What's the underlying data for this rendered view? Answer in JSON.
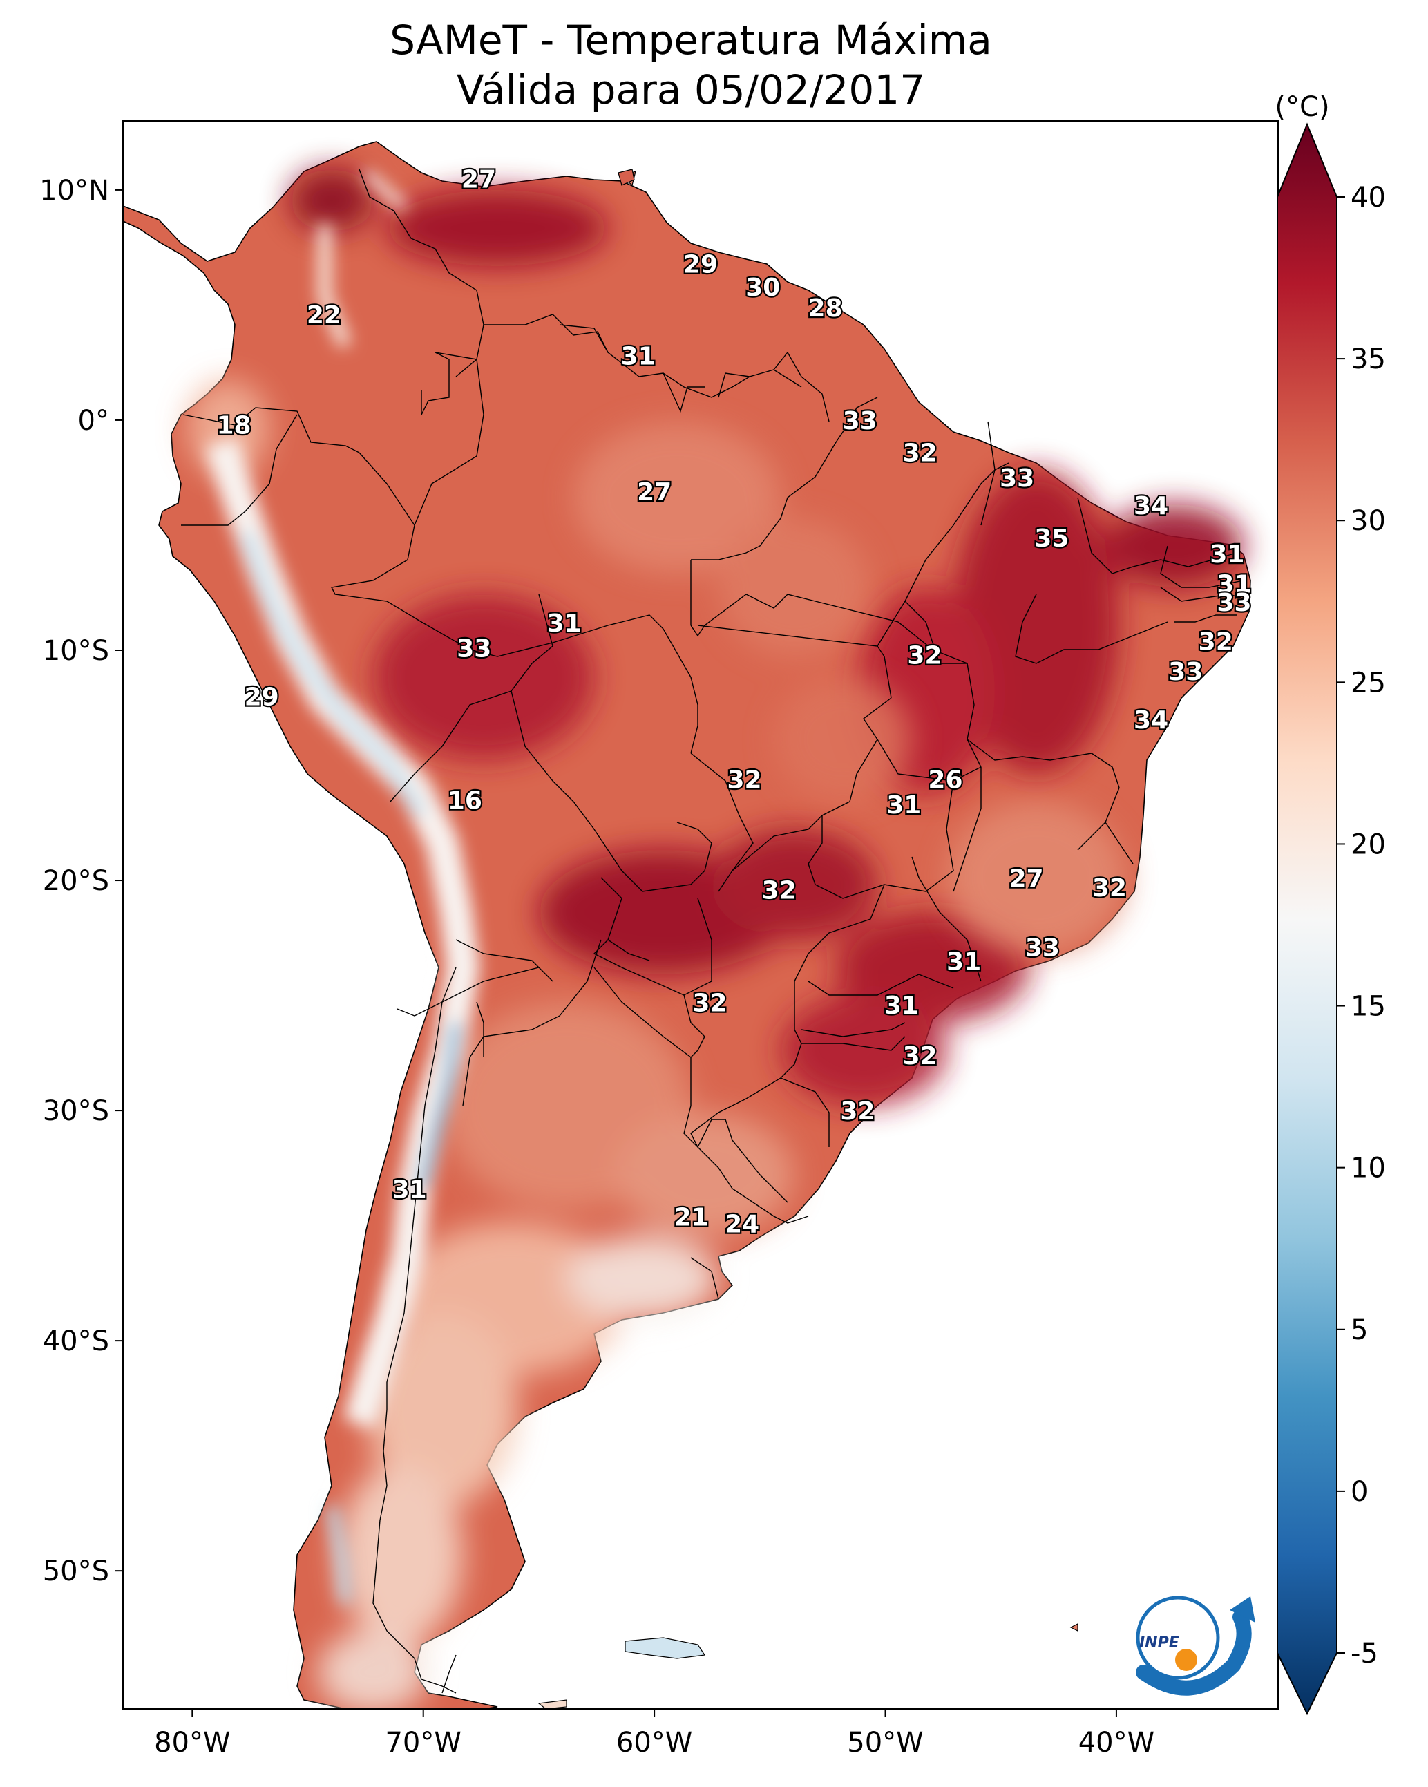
{
  "title_line1": "SAMeT - Temperatura Máxima",
  "title_line2": "Válida para 05/02/2017",
  "unit": "(°C)",
  "map": {
    "lon_range": [
      -83,
      -33
    ],
    "lat_range": [
      -56,
      13
    ],
    "x_ticks": [
      {
        "value": -80,
        "label": "80°W"
      },
      {
        "value": -70,
        "label": "70°W"
      },
      {
        "value": -60,
        "label": "60°W"
      },
      {
        "value": -50,
        "label": "50°W"
      },
      {
        "value": -40,
        "label": "40°W"
      }
    ],
    "y_ticks": [
      {
        "value": 10,
        "label": "10°N"
      },
      {
        "value": 0,
        "label": "0°"
      },
      {
        "value": -10,
        "label": "10°S"
      },
      {
        "value": -20,
        "label": "20°S"
      },
      {
        "value": -30,
        "label": "30°S"
      },
      {
        "value": -40,
        "label": "40°S"
      },
      {
        "value": -50,
        "label": "50°S"
      }
    ]
  },
  "colorbar": {
    "min": -5,
    "max": 40,
    "ticks": [
      "-5",
      "0",
      "5",
      "10",
      "15",
      "20",
      "25",
      "30",
      "35",
      "40"
    ],
    "colors": [
      "#053061",
      "#2166ac",
      "#4393c3",
      "#92c5de",
      "#d1e5f0",
      "#f7f7f7",
      "#fddbc7",
      "#f4a582",
      "#d6604d",
      "#b2182b",
      "#67001f"
    ]
  },
  "cities": [
    {
      "lon": -67.6,
      "lat": 10.5,
      "temp": "27"
    },
    {
      "lon": -74.3,
      "lat": 4.6,
      "temp": "22"
    },
    {
      "lon": -58.0,
      "lat": 6.8,
      "temp": "29"
    },
    {
      "lon": -55.3,
      "lat": 5.8,
      "temp": "30"
    },
    {
      "lon": -52.6,
      "lat": 4.9,
      "temp": "28"
    },
    {
      "lon": -60.7,
      "lat": 2.8,
      "temp": "31"
    },
    {
      "lon": -78.2,
      "lat": -0.2,
      "temp": "18"
    },
    {
      "lon": -51.1,
      "lat": 0.0,
      "temp": "33"
    },
    {
      "lon": -48.5,
      "lat": -1.4,
      "temp": "32"
    },
    {
      "lon": -60.0,
      "lat": -3.1,
      "temp": "27"
    },
    {
      "lon": -44.3,
      "lat": -2.5,
      "temp": "33"
    },
    {
      "lon": -38.5,
      "lat": -3.7,
      "temp": "34"
    },
    {
      "lon": -42.8,
      "lat": -5.1,
      "temp": "35"
    },
    {
      "lon": -35.2,
      "lat": -5.8,
      "temp": "31"
    },
    {
      "lon": -34.9,
      "lat": -7.1,
      "temp": "31"
    },
    {
      "lon": -34.9,
      "lat": -7.9,
      "temp": "33"
    },
    {
      "lon": -63.9,
      "lat": -8.8,
      "temp": "31"
    },
    {
      "lon": -67.8,
      "lat": -9.9,
      "temp": "33"
    },
    {
      "lon": -48.3,
      "lat": -10.2,
      "temp": "32"
    },
    {
      "lon": -35.7,
      "lat": -9.6,
      "temp": "32"
    },
    {
      "lon": -37.0,
      "lat": -10.9,
      "temp": "33"
    },
    {
      "lon": -77.0,
      "lat": -12.0,
      "temp": "29"
    },
    {
      "lon": -38.5,
      "lat": -13.0,
      "temp": "34"
    },
    {
      "lon": -56.1,
      "lat": -15.6,
      "temp": "32"
    },
    {
      "lon": -47.4,
      "lat": -15.6,
      "temp": "26"
    },
    {
      "lon": -49.2,
      "lat": -16.7,
      "temp": "31"
    },
    {
      "lon": -68.2,
      "lat": -16.5,
      "temp": "16"
    },
    {
      "lon": -43.9,
      "lat": -19.9,
      "temp": "27"
    },
    {
      "lon": -40.3,
      "lat": -20.3,
      "temp": "32"
    },
    {
      "lon": -54.6,
      "lat": -20.4,
      "temp": "32"
    },
    {
      "lon": -43.2,
      "lat": -22.9,
      "temp": "33"
    },
    {
      "lon": -46.6,
      "lat": -23.5,
      "temp": "31"
    },
    {
      "lon": -57.6,
      "lat": -25.3,
      "temp": "32"
    },
    {
      "lon": -49.3,
      "lat": -25.4,
      "temp": "31"
    },
    {
      "lon": -48.5,
      "lat": -27.6,
      "temp": "32"
    },
    {
      "lon": -51.2,
      "lat": -30.0,
      "temp": "32"
    },
    {
      "lon": -70.6,
      "lat": -33.4,
      "temp": "31"
    },
    {
      "lon": -58.4,
      "lat": -34.6,
      "temp": "21"
    },
    {
      "lon": -56.2,
      "lat": -34.9,
      "temp": "24"
    }
  ],
  "logo_text": "INPE"
}
